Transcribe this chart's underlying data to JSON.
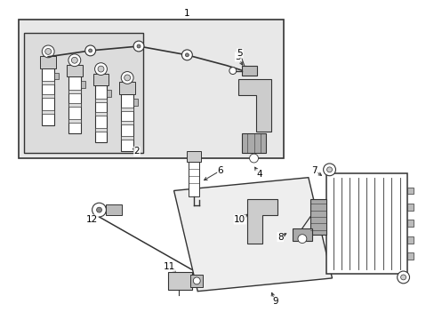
{
  "bg_color": "#ffffff",
  "line_color": "#333333",
  "box_fill": "#e8e8e8",
  "inner_fill": "#dcdcdc",
  "white": "#ffffff",
  "gray1": "#aaaaaa",
  "gray2": "#cccccc",
  "para_fill": "#eeeeee"
}
